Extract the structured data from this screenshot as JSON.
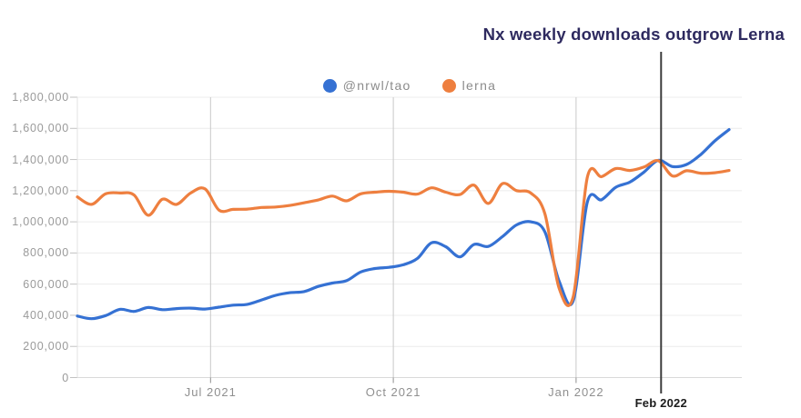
{
  "title": {
    "text": "Nx weekly downloads outgrow Lerna",
    "color": "#2e2a5f"
  },
  "legend": {
    "items": [
      {
        "label": "@nrwl/tao",
        "color": "#3571d3"
      },
      {
        "label": "lerna",
        "color": "#ee7f3f"
      }
    ]
  },
  "annotation": {
    "label": "Feb 2022",
    "week_index": 41.2,
    "line_color": "#3d3d3d",
    "label_color": "#1c1c1c"
  },
  "axes": {
    "y_tick_labels": [
      "0",
      "200,000",
      "400,000",
      "600,000",
      "800,000",
      "1,000,000",
      "1,200,000",
      "1,400,000",
      "1,600,000",
      "1,800,000"
    ],
    "y_tick_values": [
      0,
      200000,
      400000,
      600000,
      800000,
      1000000,
      1200000,
      1400000,
      1600000,
      1800000
    ],
    "x_ticks": [
      {
        "label": "Jul 2021",
        "week_index": 9.4
      },
      {
        "label": "Oct 2021",
        "week_index": 22.3
      },
      {
        "label": "Jan 2022",
        "week_index": 35.2
      }
    ]
  },
  "colors": {
    "h_grid": "#ececec",
    "v_grid": "#c9c9c9",
    "axis_line": "#d9d9d9",
    "side_axis": "#e3e3e3",
    "tick_mark": "#8f8f8f",
    "y_dash": "#c2c2c2"
  },
  "chart_data": {
    "type": "line",
    "title": "Nx weekly downloads outgrow Lerna",
    "x_unit": "week_start_date",
    "x": [
      "2021-04-26",
      "2021-05-03",
      "2021-05-10",
      "2021-05-17",
      "2021-05-24",
      "2021-05-31",
      "2021-06-07",
      "2021-06-14",
      "2021-06-21",
      "2021-06-28",
      "2021-07-05",
      "2021-07-12",
      "2021-07-19",
      "2021-07-26",
      "2021-08-02",
      "2021-08-09",
      "2021-08-16",
      "2021-08-23",
      "2021-08-30",
      "2021-09-06",
      "2021-09-13",
      "2021-09-20",
      "2021-09-27",
      "2021-10-04",
      "2021-10-11",
      "2021-10-18",
      "2021-10-25",
      "2021-11-01",
      "2021-11-08",
      "2021-11-15",
      "2021-11-22",
      "2021-11-29",
      "2021-12-06",
      "2021-12-13",
      "2021-12-20",
      "2021-12-27",
      "2022-01-03",
      "2022-01-10",
      "2022-01-17",
      "2022-01-24",
      "2022-01-31",
      "2022-02-07",
      "2022-02-14",
      "2022-02-21",
      "2022-02-28",
      "2022-03-07",
      "2022-03-14"
    ],
    "series": [
      {
        "name": "@nrwl/tao",
        "color": "#3571d3",
        "values": [
          395000,
          378000,
          398000,
          438000,
          425000,
          450000,
          436000,
          443000,
          446000,
          440000,
          452000,
          465000,
          470000,
          498000,
          528000,
          545000,
          552000,
          585000,
          607000,
          622000,
          678000,
          700000,
          708000,
          724000,
          765000,
          865000,
          840000,
          775000,
          855000,
          842000,
          905000,
          980000,
          1000000,
          935000,
          620000,
          494000,
          1128000,
          1142000,
          1222000,
          1255000,
          1320000,
          1395000,
          1355000,
          1368000,
          1432000,
          1520000,
          1592000
        ]
      },
      {
        "name": "lerna",
        "color": "#ee7f3f",
        "values": [
          1160000,
          1112000,
          1180000,
          1185000,
          1172000,
          1042000,
          1145000,
          1112000,
          1185000,
          1212000,
          1075000,
          1080000,
          1082000,
          1092000,
          1095000,
          1105000,
          1122000,
          1140000,
          1165000,
          1135000,
          1180000,
          1190000,
          1196000,
          1190000,
          1178000,
          1218000,
          1190000,
          1175000,
          1235000,
          1118000,
          1245000,
          1200000,
          1185000,
          1050000,
          575000,
          520000,
          1287000,
          1290000,
          1342000,
          1330000,
          1352000,
          1392000,
          1295000,
          1328000,
          1312000,
          1315000,
          1330000
        ]
      }
    ],
    "ylim": [
      0,
      1800000
    ],
    "grid": true,
    "legend_position": "top",
    "annotation": {
      "label": "Feb 2022",
      "x": "2022-02-07"
    }
  }
}
